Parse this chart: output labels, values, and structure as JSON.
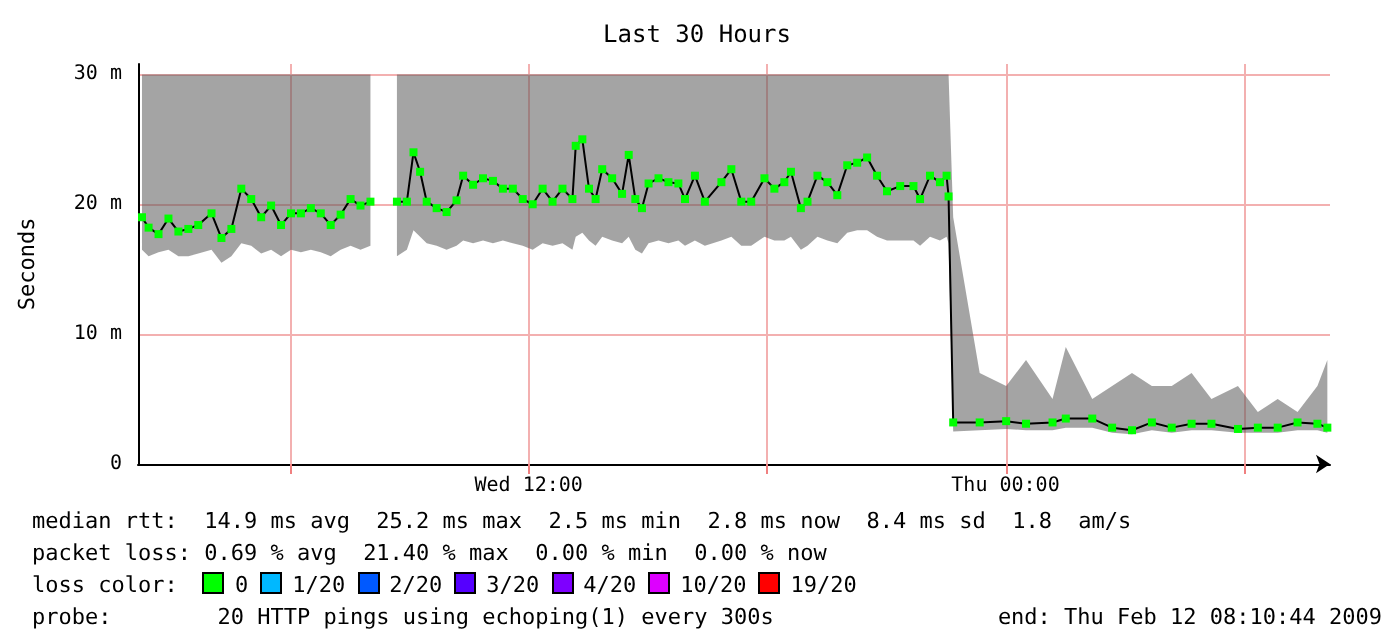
{
  "chart_data": {
    "type": "line",
    "title": "Last 30 Hours",
    "ylabel": "Seconds",
    "xlim": [
      "2009-02-11T02:10",
      "2009-02-12T08:10"
    ],
    "xticks": [
      {
        "value": "2009-02-11T06:00",
        "label": null
      },
      {
        "value": "2009-02-11T12:00",
        "label": "Wed 12:00"
      },
      {
        "value": "2009-02-11T18:00",
        "label": null
      },
      {
        "value": "2009-02-12T00:00",
        "label": "Thu 00:00"
      },
      {
        "value": "2009-02-12T06:00",
        "label": null
      }
    ],
    "ylim": [
      0,
      30.8
    ],
    "yticks": [
      {
        "value": 0,
        "label": "0"
      },
      {
        "value": 10,
        "label": "10 m"
      },
      {
        "value": 20,
        "label": "20 m"
      },
      {
        "value": 30,
        "label": "30 m"
      }
    ],
    "grid": true,
    "marker": "square",
    "line_style": "solid",
    "series": [
      {
        "color": "#00ff00",
        "x": [
          "2009-02-11T02:16",
          "2009-02-11T02:26",
          "2009-02-11T02:41",
          "2009-02-11T02:56",
          "2009-02-11T03:11",
          "2009-02-11T03:26",
          "2009-02-11T03:41",
          "2009-02-11T04:01",
          "2009-02-11T04:16",
          "2009-02-11T04:31",
          "2009-02-11T04:46",
          "2009-02-11T05:01",
          "2009-02-11T05:16",
          "2009-02-11T05:31",
          "2009-02-11T05:46",
          "2009-02-11T06:01",
          "2009-02-11T06:16",
          "2009-02-11T06:31",
          "2009-02-11T06:46",
          "2009-02-11T07:01",
          "2009-02-11T07:16",
          "2009-02-11T07:31",
          "2009-02-11T07:46",
          "2009-02-11T08:01",
          "2009-02-11T08:18",
          "2009-02-11T08:41",
          "2009-02-11T08:56",
          "2009-02-11T09:06",
          "2009-02-11T09:16",
          "2009-02-11T09:26",
          "2009-02-11T09:41",
          "2009-02-11T09:56",
          "2009-02-11T10:11",
          "2009-02-11T10:21",
          "2009-02-11T10:36",
          "2009-02-11T10:51",
          "2009-02-11T11:06",
          "2009-02-11T11:21",
          "2009-02-11T11:36",
          "2009-02-11T11:51",
          "2009-02-11T12:06",
          "2009-02-11T12:21",
          "2009-02-11T12:36",
          "2009-02-11T12:51",
          "2009-02-11T13:06",
          "2009-02-11T13:11",
          "2009-02-11T13:21",
          "2009-02-11T13:31",
          "2009-02-11T13:41",
          "2009-02-11T13:51",
          "2009-02-11T14:06",
          "2009-02-11T14:21",
          "2009-02-11T14:31",
          "2009-02-11T14:41",
          "2009-02-11T14:51",
          "2009-02-11T15:01",
          "2009-02-11T15:16",
          "2009-02-11T15:31",
          "2009-02-11T15:46",
          "2009-02-11T15:56",
          "2009-02-11T16:11",
          "2009-02-11T16:26",
          "2009-02-11T16:51",
          "2009-02-11T17:06",
          "2009-02-11T17:21",
          "2009-02-11T17:36",
          "2009-02-11T17:56",
          "2009-02-11T18:11",
          "2009-02-11T18:26",
          "2009-02-11T18:36",
          "2009-02-11T18:51",
          "2009-02-11T19:01",
          "2009-02-11T19:16",
          "2009-02-11T19:31",
          "2009-02-11T19:46",
          "2009-02-11T20:01",
          "2009-02-11T20:16",
          "2009-02-11T20:31",
          "2009-02-11T20:46",
          "2009-02-11T21:01",
          "2009-02-11T21:21",
          "2009-02-11T21:41",
          "2009-02-11T21:51",
          "2009-02-11T22:06",
          "2009-02-11T22:21",
          "2009-02-11T22:31",
          "2009-02-11T22:34",
          "2009-02-11T22:41",
          "2009-02-11T23:21",
          "2009-02-12T00:01",
          "2009-02-12T00:31",
          "2009-02-12T01:11",
          "2009-02-12T01:31",
          "2009-02-12T02:11",
          "2009-02-12T02:41",
          "2009-02-12T03:11",
          "2009-02-12T03:41",
          "2009-02-12T04:11",
          "2009-02-12T04:41",
          "2009-02-12T05:11",
          "2009-02-12T05:51",
          "2009-02-12T06:21",
          "2009-02-12T06:51",
          "2009-02-12T07:21",
          "2009-02-12T07:51",
          "2009-02-12T08:06"
        ],
        "values": [
          19.0,
          18.2,
          17.7,
          18.9,
          17.9,
          18.1,
          18.4,
          19.3,
          17.4,
          18.1,
          21.2,
          20.4,
          19.0,
          19.9,
          18.4,
          19.3,
          19.3,
          19.7,
          19.3,
          18.4,
          19.2,
          20.4,
          19.9,
          20.2,
          null,
          20.2,
          20.2,
          24.0,
          22.5,
          20.2,
          19.7,
          19.4,
          20.3,
          22.2,
          21.5,
          22.0,
          21.8,
          21.2,
          21.2,
          20.4,
          20.0,
          21.2,
          20.2,
          21.2,
          20.4,
          24.5,
          25.0,
          21.2,
          20.4,
          22.7,
          22.0,
          20.8,
          23.8,
          20.4,
          19.7,
          21.6,
          22.0,
          21.7,
          21.6,
          20.4,
          22.2,
          20.2,
          21.7,
          22.7,
          20.2,
          20.2,
          22.0,
          21.2,
          21.7,
          22.5,
          19.7,
          20.2,
          22.2,
          21.7,
          20.7,
          23.0,
          23.2,
          23.6,
          22.2,
          21.0,
          21.4,
          21.4,
          20.4,
          22.2,
          21.7,
          22.2,
          20.6,
          3.2,
          3.2,
          3.3,
          3.1,
          3.2,
          3.5,
          3.5,
          2.8,
          2.6,
          3.2,
          2.8,
          3.1,
          3.1,
          2.7,
          2.8,
          2.8,
          3.2,
          3.1,
          2.8
        ],
        "lower": [
          16.5,
          16.0,
          16.3,
          16.5,
          16.0,
          16.0,
          16.2,
          16.5,
          15.5,
          16.0,
          17.0,
          16.8,
          16.2,
          16.5,
          16.0,
          16.5,
          16.3,
          16.5,
          16.3,
          16.0,
          16.5,
          16.8,
          16.5,
          16.8,
          null,
          16.0,
          16.5,
          18.0,
          17.5,
          17.0,
          16.8,
          16.5,
          16.8,
          17.2,
          17.0,
          17.2,
          17.0,
          17.2,
          17.0,
          16.8,
          16.5,
          17.0,
          16.8,
          17.0,
          16.5,
          17.5,
          17.8,
          17.2,
          16.8,
          17.5,
          17.2,
          17.0,
          17.5,
          16.5,
          16.2,
          17.0,
          17.2,
          17.0,
          17.2,
          16.8,
          17.2,
          16.8,
          17.2,
          17.5,
          16.8,
          16.8,
          17.5,
          17.2,
          17.2,
          17.5,
          16.5,
          16.8,
          17.5,
          17.2,
          17.0,
          17.8,
          18.0,
          18.0,
          17.5,
          17.2,
          17.2,
          17.2,
          16.8,
          17.5,
          17.2,
          17.5,
          17.0,
          2.5,
          2.6,
          2.7,
          2.6,
          2.6,
          2.8,
          2.8,
          2.4,
          2.3,
          2.6,
          2.4,
          2.6,
          2.6,
          2.4,
          2.4,
          2.4,
          2.6,
          2.6,
          2.4
        ],
        "upper": [
          30,
          30,
          30,
          30,
          30,
          30,
          30,
          30,
          30,
          30,
          30,
          30,
          30,
          30,
          30,
          30,
          30,
          30,
          30,
          30,
          30,
          30,
          30,
          30,
          null,
          30,
          30,
          30,
          30,
          30,
          30,
          30,
          30,
          30,
          30,
          30,
          30,
          30,
          30,
          30,
          30,
          30,
          30,
          30,
          30,
          30,
          30,
          30,
          30,
          30,
          30,
          30,
          30,
          30,
          30,
          30,
          30,
          30,
          30,
          30,
          30,
          30,
          30,
          30,
          30,
          30,
          30,
          30,
          30,
          30,
          30,
          30,
          30,
          30,
          30,
          30,
          30,
          30,
          30,
          30,
          30,
          30,
          30,
          30,
          30,
          30,
          30,
          19,
          7,
          6,
          8,
          5,
          9,
          5,
          6,
          7,
          6,
          6,
          7,
          5,
          6,
          4,
          5,
          4,
          6,
          8
        ]
      }
    ],
    "annotations": [
      "median rtt:  14.9 ms avg  25.2 ms max  2.5 ms min  2.8 ms now  8.4 ms sd  1.8  am/s",
      "packet loss: 0.69 % avg  21.40 % max  0.00 % min  0.00 % now",
      "loss color:",
      "0",
      "1/20",
      "2/20",
      "3/20",
      "4/20",
      "10/20",
      "19/20",
      "probe:        20 HTTP pings using echoping(1) every 300s",
      "end: Thu Feb 12 08:10:44 2009"
    ]
  }
}
